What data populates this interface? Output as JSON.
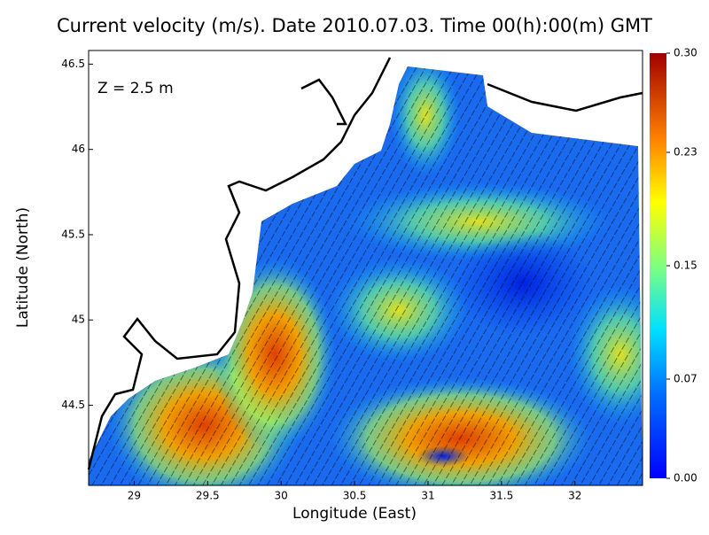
{
  "chart_data": {
    "type": "heatmap",
    "title": "Current velocity (m/s). Date 2010.07.03. Time 00(h):00(m) GMT",
    "annotation": "Z = 2.5 m",
    "x_label": "Longitude (East)",
    "y_label": "Latitude (North)",
    "xlim": [
      28.69,
      32.46
    ],
    "xticks": [
      29,
      29.5,
      30,
      30.5,
      31,
      31.5,
      32
    ],
    "ylim": [
      44.03,
      46.58
    ],
    "yticks": [
      44.5,
      45,
      45.5,
      46,
      46.5
    ],
    "clim": [
      0,
      0.3
    ],
    "cticks": [
      {
        "value": 0,
        "label": "0.00"
      },
      {
        "value": 0.07,
        "label": "0.07"
      },
      {
        "value": 0.15,
        "label": "0.15"
      },
      {
        "value": 0.23,
        "label": "0.23"
      },
      {
        "value": 0.3,
        "label": "0.30"
      }
    ]
  }
}
